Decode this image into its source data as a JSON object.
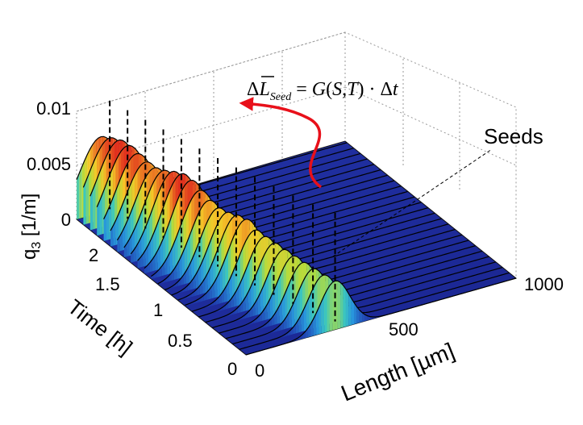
{
  "chart_data": {
    "type": "surface",
    "title": "",
    "axes": {
      "z": {
        "label_base": "q",
        "label_sub": "3",
        "label_unit": " [1/m]",
        "range": [
          0,
          0.01
        ],
        "ticks": [
          "0",
          "0.005",
          "0.01"
        ]
      },
      "time": {
        "label": "Time [h]",
        "range": [
          0,
          2.5
        ],
        "ticks": [
          "0",
          "0.5",
          "1",
          "1.5",
          "2"
        ]
      },
      "length": {
        "label": "Length [µm]",
        "range": [
          0,
          1000
        ],
        "ticks": [
          "0",
          "500",
          "1000"
        ]
      }
    },
    "grid": true,
    "annotations": {
      "seeds_label": "Seeds",
      "equation": {
        "delta": "Δ",
        "L": "L",
        "sub": "Seed",
        "rhs_1": " = ",
        "rhs_2": "G",
        "rhs_3": "(",
        "rhs_4": "S",
        "rhs_5": ",",
        "rhs_6": "T",
        "rhs_7": ") · Δ",
        "rhs_8": "t"
      }
    },
    "series": {
      "seed_peak_length_um": 330,
      "seed_peak_q3": 0.0045,
      "final_peak_length_um": 90,
      "final_peak_q3": 0.0072,
      "time_slices_h": [
        0,
        0.1,
        0.2,
        0.3,
        0.4,
        0.5,
        0.6,
        0.7,
        0.8,
        0.9,
        1.0,
        1.1,
        1.2,
        1.3,
        1.4,
        1.5,
        1.6,
        1.7,
        1.8,
        1.9,
        2.0,
        2.1,
        2.2,
        2.3,
        2.4,
        2.5
      ]
    },
    "colors": {
      "surface_low": "#1f2fa8",
      "surface_mid": "#38c0c0",
      "surface_high": "#e0301e",
      "arrow": "#e8101a",
      "mesh": "#000000"
    }
  }
}
